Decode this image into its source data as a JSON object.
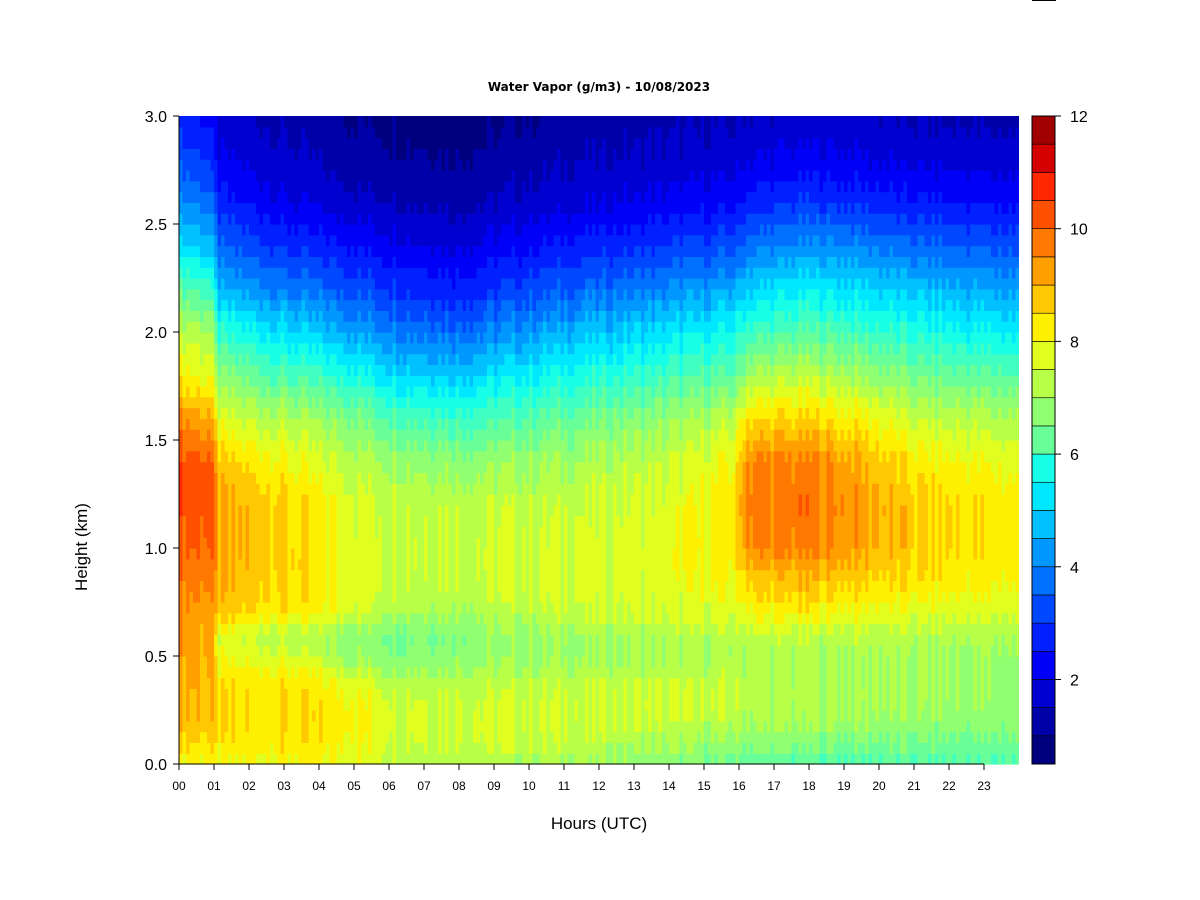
{
  "chart_data": {
    "type": "heatmap",
    "title": "Water Vapor (g/m3) - 10/08/2023",
    "xlabel": "Hours (UTC)",
    "ylabel": "Height (km)",
    "x_ticks": [
      "00",
      "01",
      "02",
      "03",
      "04",
      "05",
      "06",
      "07",
      "08",
      "09",
      "10",
      "11",
      "12",
      "13",
      "14",
      "15",
      "16",
      "17",
      "18",
      "19",
      "20",
      "21",
      "22",
      "23"
    ],
    "y_ticks": [
      "0.0",
      "0.5",
      "1.0",
      "1.5",
      "2.0",
      "2.5",
      "3.0"
    ],
    "xlim": [
      0,
      24
    ],
    "ylim": [
      0,
      3.0
    ],
    "colorbar": {
      "ticks": [
        "2",
        "4",
        "6",
        "8",
        "10",
        "12"
      ],
      "range": [
        0.5,
        12
      ],
      "levels": 23,
      "colors": [
        "#00007f",
        "#0000a8",
        "#0000d0",
        "#0000f8",
        "#0020ff",
        "#0048ff",
        "#0070ff",
        "#0098ff",
        "#00c0ff",
        "#00e8ff",
        "#18ffe8",
        "#40ffc0",
        "#68ff98",
        "#90ff70",
        "#b8ff48",
        "#e0ff20",
        "#ffef00",
        "#ffc800",
        "#ffa000",
        "#ff7800",
        "#ff5000",
        "#ff2800",
        "#d40000",
        "#a00000",
        "#7f0000"
      ]
    },
    "profiles": {
      "heights_km": [
        0.0,
        0.1,
        0.2,
        0.3,
        0.4,
        0.5,
        0.6,
        0.7,
        0.8,
        0.9,
        1.0,
        1.2,
        1.4,
        1.6,
        1.8,
        2.0,
        2.2,
        2.4,
        2.6,
        2.8,
        3.0
      ],
      "keyframes": [
        {
          "hour": 0.0,
          "values": [
            8.3,
            8.8,
            9.2,
            9.2,
            9.3,
            9.4,
            9.4,
            9.6,
            9.8,
            10.0,
            10.2,
            10.4,
            10.4,
            9.6,
            8.4,
            7.6,
            6.4,
            5.0,
            4.0,
            3.2,
            2.6
          ]
        },
        {
          "hour": 0.9,
          "values": [
            8.2,
            8.6,
            9.0,
            9.0,
            9.1,
            9.2,
            9.2,
            9.4,
            9.6,
            9.9,
            10.1,
            10.3,
            10.2,
            9.3,
            8.0,
            7.3,
            6.0,
            4.6,
            3.6,
            2.8,
            2.2
          ]
        },
        {
          "hour": 1.15,
          "values": [
            8.0,
            8.4,
            8.5,
            8.5,
            8.4,
            8.0,
            7.8,
            8.8,
            9.0,
            9.1,
            9.2,
            9.2,
            8.8,
            7.8,
            6.8,
            5.8,
            4.4,
            3.4,
            2.6,
            2.0,
            1.6
          ]
        },
        {
          "hour": 3.0,
          "values": [
            8.2,
            8.5,
            8.6,
            8.6,
            8.5,
            7.8,
            7.5,
            8.5,
            8.7,
            8.8,
            8.8,
            8.8,
            8.2,
            7.4,
            6.2,
            5.0,
            3.8,
            2.8,
            2.0,
            1.6,
            1.3
          ]
        },
        {
          "hour": 5.0,
          "values": [
            8.0,
            8.3,
            8.4,
            8.3,
            7.8,
            7.1,
            7.0,
            7.8,
            8.0,
            8.0,
            7.9,
            7.9,
            7.5,
            6.8,
            5.6,
            4.3,
            3.2,
            2.4,
            1.6,
            1.2,
            1.0
          ]
        },
        {
          "hour": 6.2,
          "values": [
            7.6,
            7.8,
            7.9,
            7.8,
            7.4,
            6.9,
            6.8,
            7.4,
            7.7,
            7.8,
            7.8,
            7.7,
            7.2,
            6.3,
            5.0,
            3.9,
            2.9,
            2.1,
            1.5,
            1.1,
            0.9
          ]
        },
        {
          "hour": 8.0,
          "values": [
            7.4,
            7.8,
            7.8,
            7.7,
            7.4,
            7.0,
            6.9,
            7.3,
            7.6,
            7.7,
            7.7,
            7.6,
            7.0,
            6.0,
            4.8,
            3.6,
            2.6,
            1.9,
            1.3,
            1.0,
            0.7
          ]
        },
        {
          "hour": 11.0,
          "values": [
            7.2,
            7.6,
            7.7,
            7.7,
            7.5,
            7.1,
            7.2,
            7.6,
            7.8,
            7.8,
            7.8,
            7.6,
            7.2,
            6.5,
            5.5,
            4.4,
            3.4,
            2.5,
            1.8,
            1.4,
            1.1
          ]
        },
        {
          "hour": 14.0,
          "values": [
            6.8,
            7.2,
            7.6,
            7.7,
            7.5,
            7.3,
            7.4,
            7.8,
            7.9,
            8.0,
            8.0,
            7.9,
            7.6,
            7.0,
            6.0,
            5.0,
            3.9,
            2.9,
            2.1,
            1.6,
            1.3
          ]
        },
        {
          "hour": 15.9,
          "values": [
            6.5,
            7.0,
            7.4,
            7.6,
            7.5,
            7.3,
            7.4,
            7.8,
            8.1,
            8.3,
            8.4,
            8.5,
            8.2,
            7.5,
            6.4,
            5.4,
            4.3,
            3.2,
            2.3,
            1.7,
            1.4
          ]
        },
        {
          "hour": 16.2,
          "values": [
            6.5,
            7.0,
            7.3,
            7.5,
            7.4,
            7.4,
            7.6,
            8.2,
            8.6,
            9.0,
            9.6,
            9.8,
            9.6,
            8.6,
            7.2,
            6.0,
            4.8,
            3.6,
            2.6,
            1.9,
            1.5
          ]
        },
        {
          "hour": 18.0,
          "values": [
            6.2,
            6.8,
            7.2,
            7.4,
            7.3,
            7.3,
            7.5,
            8.3,
            8.8,
            9.2,
            9.7,
            9.9,
            9.7,
            8.7,
            7.5,
            6.3,
            5.2,
            4.0,
            2.9,
            2.1,
            1.6
          ]
        },
        {
          "hour": 19.2,
          "values": [
            6.2,
            6.8,
            7.2,
            7.4,
            7.3,
            7.3,
            7.5,
            8.1,
            8.6,
            9.0,
            9.4,
            9.5,
            9.3,
            8.4,
            7.3,
            6.1,
            5.0,
            3.9,
            2.8,
            2.0,
            1.6
          ]
        },
        {
          "hour": 21.0,
          "values": [
            6.2,
            6.6,
            7.0,
            7.2,
            7.2,
            7.2,
            7.4,
            7.9,
            8.3,
            8.6,
            8.8,
            8.8,
            8.4,
            7.6,
            6.6,
            5.6,
            4.6,
            3.5,
            2.5,
            1.8,
            1.4
          ]
        },
        {
          "hour": 23.9,
          "values": [
            6.2,
            6.6,
            6.9,
            7.1,
            7.1,
            7.1,
            7.3,
            7.8,
            8.1,
            8.3,
            8.4,
            8.4,
            8.0,
            7.3,
            6.3,
            5.2,
            4.2,
            3.2,
            2.3,
            1.7,
            1.3
          ]
        }
      ]
    }
  }
}
